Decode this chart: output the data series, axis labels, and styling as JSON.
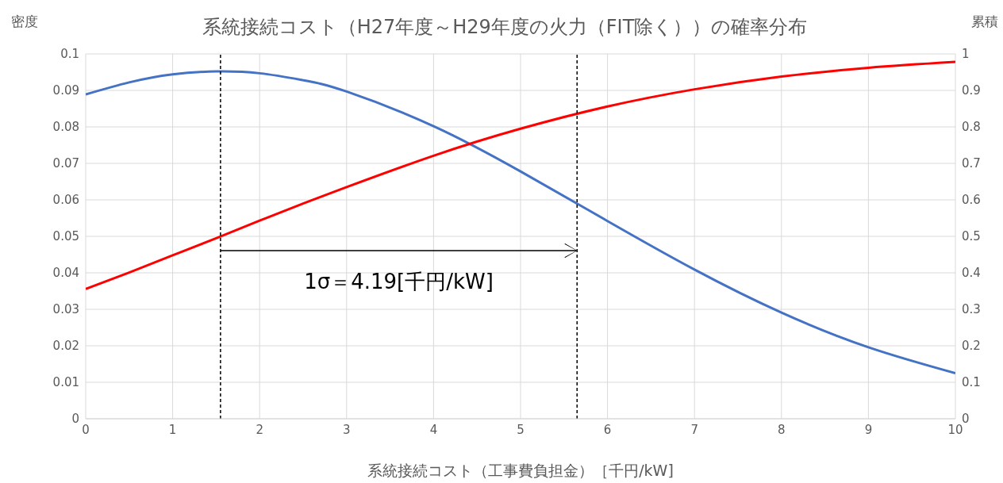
{
  "chart_data": {
    "type": "line",
    "title": "系統接続コスト（H27年度～H29年度の火力（FIT除く））の確率分布",
    "xlabel": "系統接続コスト（工事費負担金）［千円/kW]",
    "ylabel": "密度",
    "y2label": "累積",
    "x": [
      0,
      0.5,
      1,
      1.5,
      2,
      2.5,
      3,
      4,
      5,
      6,
      7,
      8,
      9,
      10
    ],
    "series": [
      {
        "name": null,
        "color": "#4472c4",
        "values": [
          0.0889,
          0.0922,
          0.0944,
          0.0952,
          0.0947,
          0.0928,
          0.0897,
          0.0802,
          0.0678,
          0.0542,
          0.0409,
          0.0291,
          0.0196,
          0.0125
        ]
      },
      {
        "name": null,
        "color": "#ff0000",
        "axis": "y2",
        "values": [
          0.356,
          0.401,
          0.448,
          0.495,
          0.543,
          0.59,
          0.635,
          0.721,
          0.795,
          0.856,
          0.903,
          0.938,
          0.962,
          0.978
        ]
      }
    ],
    "xlim": [
      0,
      10
    ],
    "xticks": [
      0,
      1,
      2,
      3,
      4,
      5,
      6,
      7,
      8,
      9,
      10
    ],
    "ylim": [
      0,
      0.1
    ],
    "yticks": [
      0,
      0.01,
      0.02,
      0.03,
      0.04,
      0.05,
      0.06,
      0.07,
      0.08,
      0.09,
      0.1
    ],
    "y2lim": [
      0,
      1
    ],
    "y2ticks": [
      0,
      0.1,
      0.2,
      0.3,
      0.4,
      0.5,
      0.6,
      0.7,
      0.8,
      0.9,
      1
    ],
    "ref_lines": [
      {
        "axis": "x",
        "value": 1.55,
        "color": "#000000",
        "line_style": "dashed"
      },
      {
        "axis": "x",
        "value": 5.65,
        "color": "#000000",
        "line_style": "dashed"
      }
    ],
    "annotations": [
      "1σ＝4.19[千円/kW]"
    ],
    "grid": true,
    "marker": "none",
    "line_style": "solid"
  }
}
